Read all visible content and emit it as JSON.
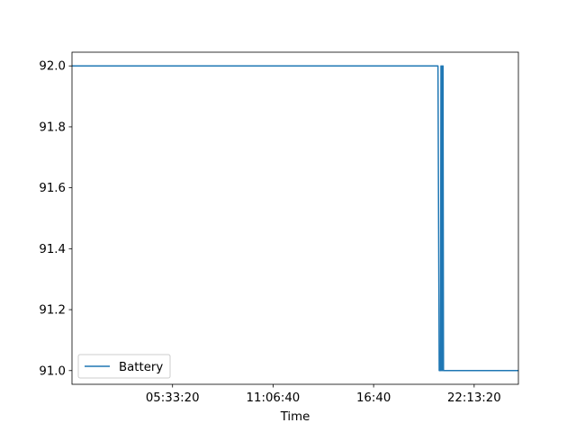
{
  "chart_data": {
    "type": "line",
    "title": "",
    "xlabel": "Time",
    "ylabel": "",
    "x_unit": "seconds",
    "xlim": [
      0,
      88800
    ],
    "ylim": [
      90.955,
      92.045
    ],
    "grid": false,
    "legend_placement": "lower-left",
    "x_ticks": [
      {
        "value": 20000,
        "label": "05:33:20"
      },
      {
        "value": 40000,
        "label": "11:06:40"
      },
      {
        "value": 60000,
        "label": "16:40"
      },
      {
        "value": 80000,
        "label": "22:13:20"
      }
    ],
    "y_ticks": [
      {
        "value": 91.0,
        "label": "91.0"
      },
      {
        "value": 91.2,
        "label": "91.2"
      },
      {
        "value": 91.4,
        "label": "91.4"
      },
      {
        "value": 91.6,
        "label": "91.6"
      },
      {
        "value": 91.8,
        "label": "91.8"
      },
      {
        "value": 92.0,
        "label": "92.0"
      }
    ],
    "series": [
      {
        "name": "Battery",
        "color": "#1f77b4",
        "points": [
          {
            "x": 0,
            "y": 92.0
          },
          {
            "x": 72800,
            "y": 92.0
          },
          {
            "x": 73050,
            "y": 91.0
          },
          {
            "x": 73300,
            "y": 91.0
          },
          {
            "x": 73400,
            "y": 92.0
          },
          {
            "x": 73500,
            "y": 91.0
          },
          {
            "x": 73600,
            "y": 92.0
          },
          {
            "x": 73700,
            "y": 91.0
          },
          {
            "x": 73800,
            "y": 92.0
          },
          {
            "x": 73900,
            "y": 91.0
          },
          {
            "x": 88800,
            "y": 91.0
          }
        ]
      }
    ]
  }
}
